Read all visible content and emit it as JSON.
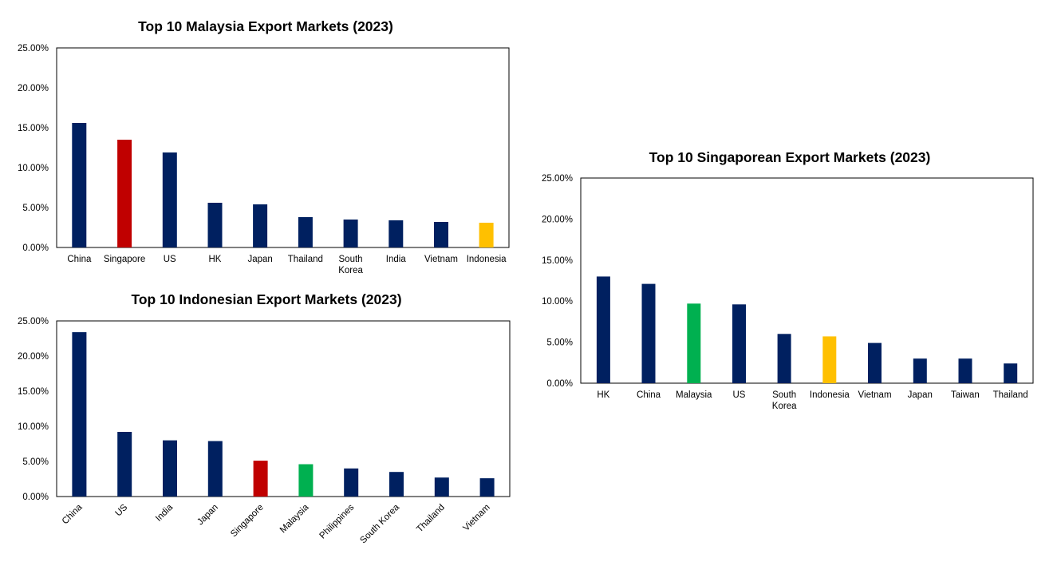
{
  "colors": {
    "navy": "#002060",
    "red": "#C00000",
    "green": "#00B050",
    "yellow": "#FFC000"
  },
  "chart_data": [
    {
      "type": "bar",
      "title": "Top 10 Malaysia Export Markets (2023)",
      "categories": [
        "China",
        "Singapore",
        "US",
        "HK",
        "Japan",
        "Thailand",
        "South Korea",
        "India",
        "Vietnam",
        "Indonesia"
      ],
      "values": [
        15.6,
        13.5,
        11.9,
        5.6,
        5.4,
        3.8,
        3.5,
        3.4,
        3.2,
        3.1
      ],
      "bar_colors": [
        "navy",
        "red",
        "navy",
        "navy",
        "navy",
        "navy",
        "navy",
        "navy",
        "navy",
        "yellow"
      ],
      "yticks": [
        "0.00%",
        "5.00%",
        "10.00%",
        "15.00%",
        "20.00%",
        "25.00%"
      ],
      "ylim": [
        0,
        25
      ],
      "grid": false,
      "legend": "none"
    },
    {
      "type": "bar",
      "title": "Top 10 Indonesian Export Markets (2023)",
      "categories": [
        "China",
        "US",
        "India",
        "Japan",
        "Singapore",
        "Malaysia",
        "Philippines",
        "South Korea",
        "Thailand",
        "Vietnam"
      ],
      "values": [
        23.4,
        9.2,
        8.0,
        7.9,
        5.1,
        4.6,
        4.0,
        3.5,
        2.7,
        2.6
      ],
      "bar_colors": [
        "navy",
        "navy",
        "navy",
        "navy",
        "red",
        "green",
        "navy",
        "navy",
        "navy",
        "navy"
      ],
      "yticks": [
        "0.00%",
        "5.00%",
        "10.00%",
        "15.00%",
        "20.00%",
        "25.00%"
      ],
      "ylim": [
        0,
        25
      ],
      "grid": false,
      "legend": "none"
    },
    {
      "type": "bar",
      "title": "Top 10 Singaporean Export Markets (2023)",
      "categories": [
        "HK",
        "China",
        "Malaysia",
        "US",
        "South Korea",
        "Indonesia",
        "Vietnam",
        "Japan",
        "Taiwan",
        "Thailand"
      ],
      "values": [
        13.0,
        12.1,
        9.7,
        9.6,
        6.0,
        5.7,
        4.9,
        3.0,
        3.0,
        2.4
      ],
      "bar_colors": [
        "navy",
        "navy",
        "green",
        "navy",
        "navy",
        "yellow",
        "navy",
        "navy",
        "navy",
        "navy"
      ],
      "yticks": [
        "0.00%",
        "5.00%",
        "10.00%",
        "15.00%",
        "20.00%",
        "25.00%"
      ],
      "ylim": [
        0,
        25
      ],
      "grid": false,
      "legend": "none"
    }
  ]
}
